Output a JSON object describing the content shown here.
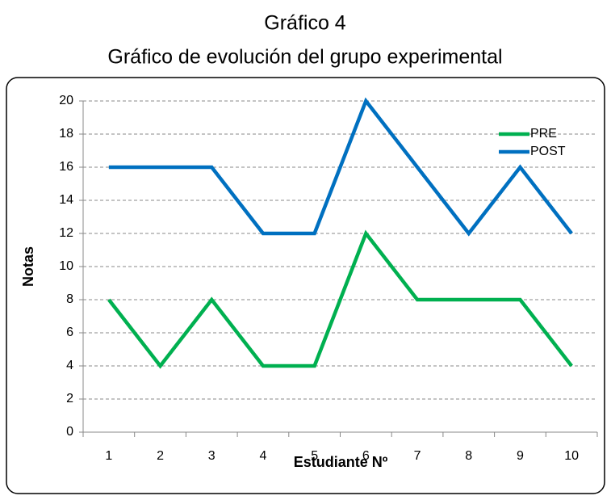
{
  "chart_data": {
    "type": "line",
    "title": "Gráfico 4",
    "subtitle": "Gráfico de evolución del grupo experimental",
    "x_label": "Estudiante Nº",
    "y_label": "Notas",
    "categories": [
      "1",
      "2",
      "3",
      "4",
      "5",
      "6",
      "7",
      "8",
      "9",
      "10"
    ],
    "series": [
      {
        "name": "PRE",
        "color": "#00b050",
        "values": [
          8,
          4,
          8,
          4,
          4,
          12,
          8,
          8,
          8,
          4
        ]
      },
      {
        "name": "POST",
        "color": "#0070c0",
        "values": [
          16,
          16,
          16,
          12,
          12,
          20,
          16,
          12,
          16,
          12
        ]
      }
    ],
    "ylim": [
      0,
      20
    ],
    "yticks": [
      0,
      2,
      4,
      6,
      8,
      10,
      12,
      14,
      16,
      18,
      20
    ],
    "grid": true,
    "legend": "top-right"
  }
}
